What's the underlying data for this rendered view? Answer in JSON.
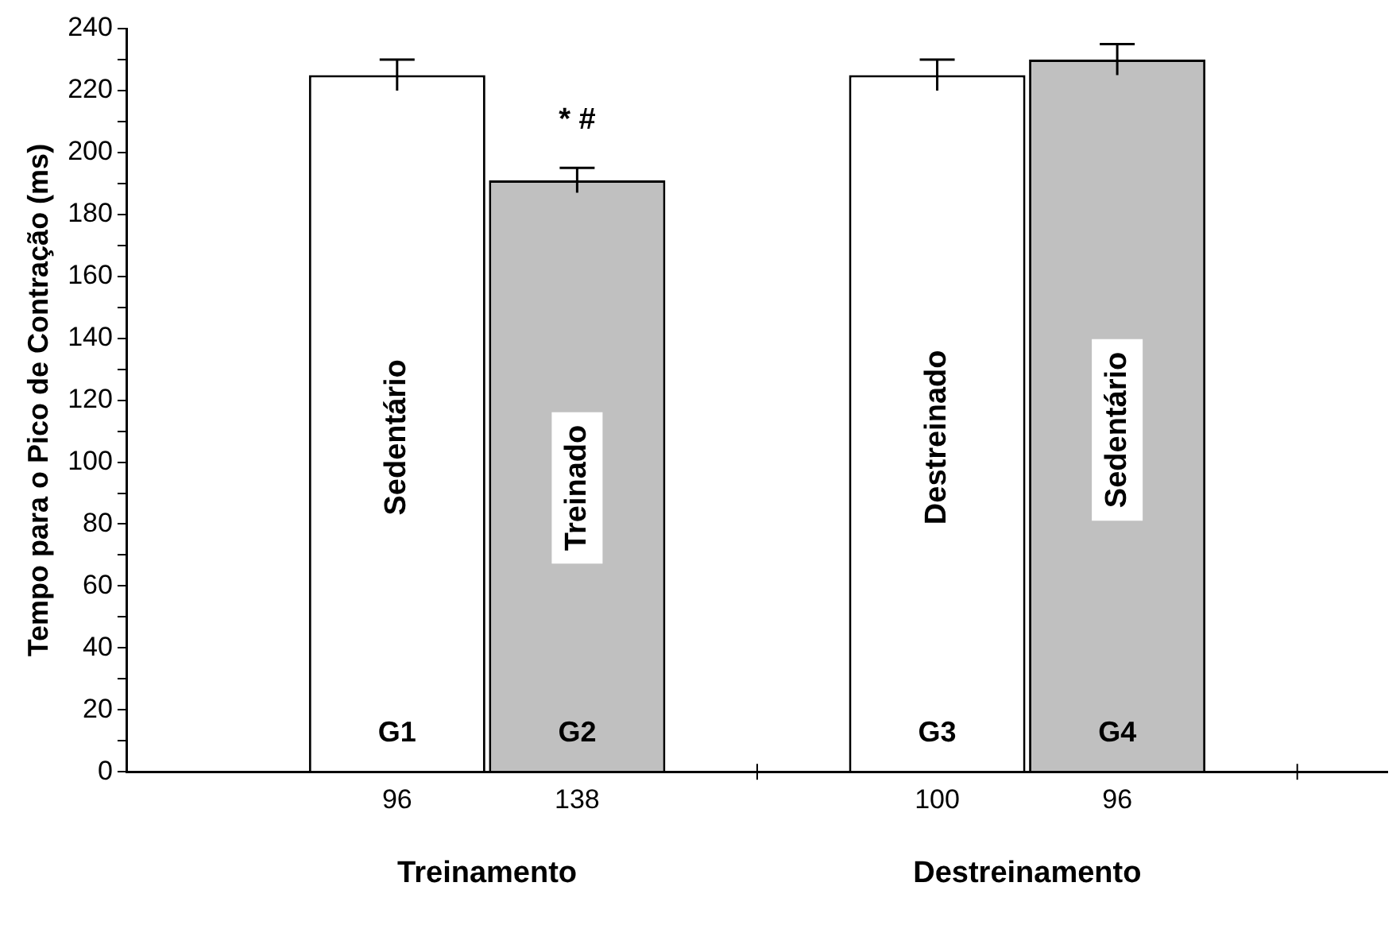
{
  "chart_data": {
    "type": "bar",
    "ylabel": "Tempo para o Pico de Contração (ms)",
    "categories": [
      null,
      "96",
      "138",
      null,
      "100",
      "96",
      null
    ],
    "values": [
      null,
      225,
      191,
      null,
      225,
      230,
      null
    ],
    "errors": [
      null,
      5,
      4,
      null,
      5,
      5,
      null
    ],
    "colors": [
      "#ffffff",
      "#ffffff",
      "#c0c0c0",
      "#ffffff",
      "#ffffff",
      "#c0c0c0",
      "#ffffff"
    ],
    "ylim": [
      0,
      240
    ],
    "yticks": [
      0,
      {
        "value": 10,
        "label": null
      },
      20,
      {
        "value": 30,
        "label": null
      },
      40,
      {
        "value": 50,
        "label": null
      },
      60,
      {
        "value": 70,
        "label": null
      },
      80,
      {
        "value": 90,
        "label": null
      },
      100,
      {
        "value": 110,
        "label": null
      },
      120,
      {
        "value": 130,
        "label": null
      },
      140,
      {
        "value": 150,
        "label": null
      },
      160,
      {
        "value": 170,
        "label": null
      },
      180,
      {
        "value": 190,
        "label": null
      },
      200,
      {
        "value": 210,
        "label": null
      },
      220,
      {
        "value": 230,
        "label": null
      },
      240
    ],
    "grid": false,
    "legend": false,
    "annotations": [
      "Sedentário",
      "Treinado",
      "Destreinado",
      "Sedentário",
      "G1",
      "G2",
      "G3",
      "G4",
      "* #",
      "Treinamento",
      "Destreinamento"
    ]
  }
}
